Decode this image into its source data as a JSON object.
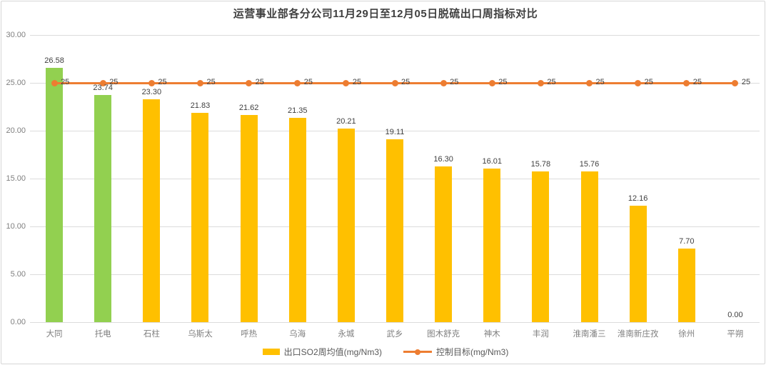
{
  "title": "运营事业部各分公司11月29日至12月05日脱硫出口周指标对比",
  "legend": {
    "bar_label": "出口SO2周均值(mg/Nm3)",
    "line_label": "控制目标(mg/Nm3)"
  },
  "colors": {
    "bar": "#FFC000",
    "bar_highlight": "#92D050",
    "line": "#ED7D31",
    "grid": "#DCDCDC",
    "axis_text": "#7F7F7F",
    "value_text": "#404040",
    "title_text": "#3F3F3F"
  },
  "chart_data": {
    "type": "bar",
    "title": "运营事业部各分公司11月29日至12月05日脱硫出口周指标对比",
    "categories": [
      "大同",
      "托电",
      "石柱",
      "乌斯太",
      "呼热",
      "乌海",
      "永城",
      "武乡",
      "图木舒克",
      "神木",
      "丰润",
      "淮南潘三",
      "淮南新庄孜",
      "徐州",
      "平朔"
    ],
    "series": [
      {
        "name": "出口SO2周均值(mg/Nm3)",
        "type": "bar",
        "values": [
          26.58,
          23.74,
          23.3,
          21.83,
          21.62,
          21.35,
          20.21,
          19.11,
          16.3,
          16.01,
          15.78,
          15.76,
          12.16,
          7.7,
          0.0
        ],
        "data_labels": [
          "26.58",
          "23.74",
          "23.30",
          "21.83",
          "21.62",
          "21.35",
          "20.21",
          "19.11",
          "16.30",
          "16.01",
          "15.78",
          "15.76",
          "12.16",
          "7.70",
          "0.00"
        ],
        "highlight_indices": [
          0,
          1
        ]
      },
      {
        "name": "控制目标(mg/Nm3)",
        "type": "line",
        "values": [
          25,
          25,
          25,
          25,
          25,
          25,
          25,
          25,
          25,
          25,
          25,
          25,
          25,
          25,
          25
        ],
        "data_labels": [
          "25",
          "25",
          "25",
          "25",
          "25",
          "25",
          "25",
          "25",
          "25",
          "25",
          "25",
          "25",
          "25",
          "25",
          "25"
        ]
      }
    ],
    "ylim": [
      0,
      30
    ],
    "y_tick_labels": [
      "0.00",
      "5.00",
      "10.00",
      "15.00",
      "20.00",
      "25.00",
      "30.00"
    ],
    "grid": true,
    "legend_position": "bottom"
  }
}
